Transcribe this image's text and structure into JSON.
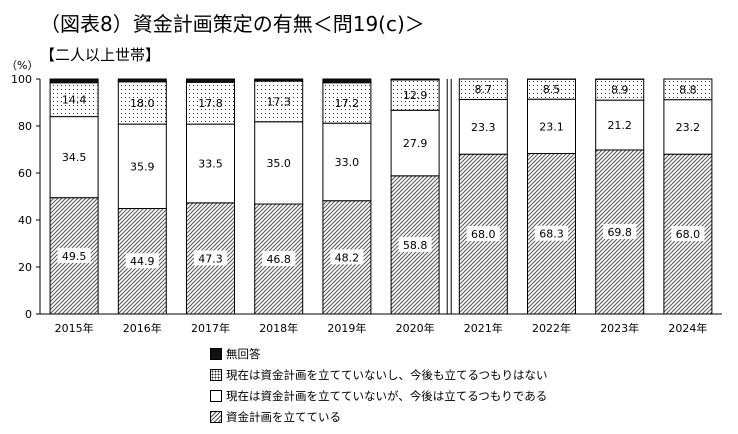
{
  "page": {
    "title": "（図表8）資金計画策定の有無＜問19(c)＞",
    "subtitle": "【二人以上世帯】"
  },
  "chart_data": {
    "type": "bar",
    "stacked": true,
    "ylabel": "（%）",
    "ylim": [
      0,
      100
    ],
    "yticks": [
      0,
      20,
      40,
      60,
      80,
      100
    ],
    "grid": false,
    "legend_position": "bottom",
    "categories": [
      "2015年",
      "2016年",
      "2017年",
      "2018年",
      "2019年",
      "2020年",
      "2021年",
      "2022年",
      "2023年",
      "2024年"
    ],
    "series": [
      {
        "name": "資金計画を立てている",
        "values": [
          49.5,
          44.9,
          47.3,
          46.8,
          48.2,
          58.8,
          68.0,
          68.3,
          69.8,
          68.0
        ],
        "labels": [
          "49.5",
          "44.9",
          "47.3",
          "46.8",
          "48.2",
          "58.8",
          "68.0",
          "68.3",
          "69.8",
          "68.0"
        ],
        "pattern": "hatch"
      },
      {
        "name": "現在は資金計画を立てていないが、今後は立てるつもりである",
        "values": [
          34.5,
          35.9,
          33.5,
          35.0,
          33.0,
          27.9,
          23.3,
          23.1,
          21.2,
          23.2
        ],
        "labels": [
          "34.5",
          "35.9",
          "33.5",
          "35.0",
          "33.0",
          "27.9",
          "23.3",
          "23.1",
          "21.2",
          "23.2"
        ],
        "pattern": "white"
      },
      {
        "name": "現在は資金計画を立てていないし、今後も立てるつもりはない",
        "values": [
          14.4,
          18.0,
          17.8,
          17.3,
          17.2,
          12.9,
          8.7,
          8.5,
          8.9,
          8.8
        ],
        "labels": [
          "14.4",
          "18.0",
          "17.8",
          "17.3",
          "17.2",
          "12.9",
          "8.7",
          "8.5",
          "8.9",
          "8.8"
        ],
        "pattern": "dots"
      },
      {
        "name": "無回答",
        "values": [
          1.6,
          1.2,
          1.4,
          0.9,
          1.6,
          0.4,
          0.0,
          0.1,
          0.1,
          0.0
        ],
        "labels": [
          "",
          "",
          "",
          "",
          "",
          "",
          "",
          "",
          "",
          ""
        ],
        "pattern": "black"
      }
    ],
    "legend_order": [
      "無回答",
      "現在は資金計画を立てていないし、今後も立てるつもりはない",
      "現在は資金計画を立てていないが、今後は立てるつもりである",
      "資金計画を立てている"
    ]
  }
}
